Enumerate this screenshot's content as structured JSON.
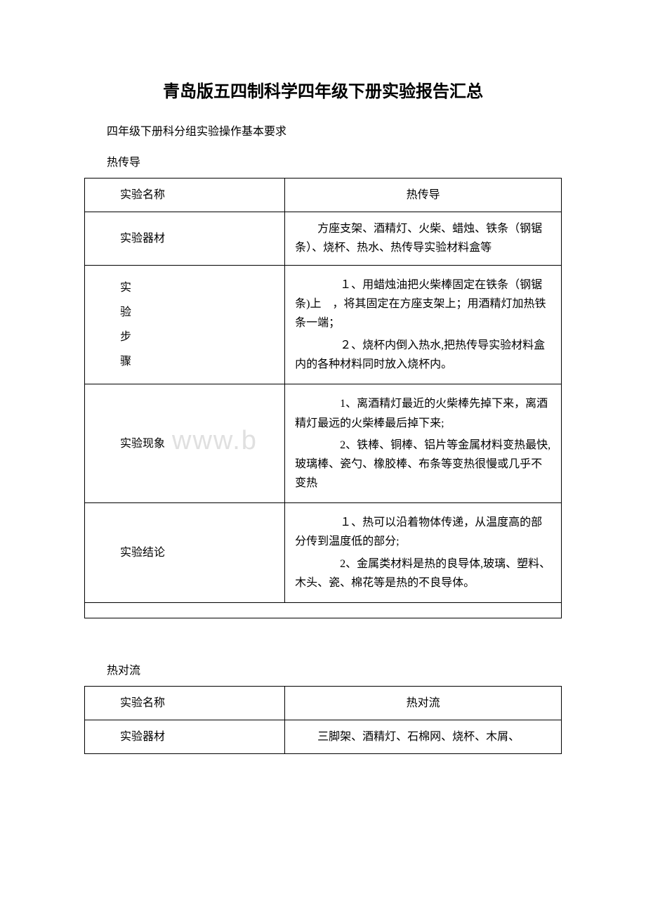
{
  "document": {
    "title": "青岛版五四制科学四年级下册实验报告汇总",
    "subtitle": "四年级下册科分组实验操作基本要求",
    "watermark": "www.b",
    "background_color": "#ffffff",
    "text_color": "#000000",
    "border_color": "#000000",
    "watermark_color": "#e0e0e0",
    "title_fontsize": 24,
    "body_fontsize": 16
  },
  "table1": {
    "section_label": "热传导",
    "column_widths": [
      0.42,
      0.58
    ],
    "rows": [
      {
        "left": "实验名称",
        "right": "热传导",
        "right_align": "center"
      },
      {
        "left": "实验器材",
        "right": "　　方座支架、酒精灯、火柴、蜡烛、铁条（钢锯条）、烧杯、热水、热传导实验材料盒等"
      },
      {
        "left_vertical": [
          "实",
          "验",
          "步",
          "骤"
        ],
        "right_multi": [
          "　　１、用蜡烛油把火柴棒固定在铁条（钢锯条)上　，将其固定在方座支架上；用酒精灯加热铁条一端；",
          "　　２、烧杯内倒入热水,把热传导实验材料盒内的各种材料同时放入烧杯内。"
        ]
      },
      {
        "left": "实验现象",
        "right_multi": [
          "　　1、离酒精灯最近的火柴棒先掉下来，离酒精灯最远的火柴棒最后掉下来;",
          "　　2、铁棒、铜棒、铝片等金属材料变热最快,玻璃棒、瓷勺、橡胶棒、布条等变热很慢或几乎不变热"
        ]
      },
      {
        "left": "实验结论",
        "right_multi": [
          "　　１、热可以沿着物体传递，从温度高的部分传到温度低的部分;",
          "　　2、金属类材料是热的良导体,玻璃、塑料、木头、瓷、棉花等是热的不良导体。"
        ]
      }
    ]
  },
  "table2": {
    "section_label": "热对流",
    "column_widths": [
      0.42,
      0.58
    ],
    "rows": [
      {
        "left": "实验名称",
        "right": "热对流",
        "right_align": "center"
      },
      {
        "left": "实验器材",
        "right": "　　三脚架、酒精灯、石棉网、烧杯、木屑、"
      }
    ]
  }
}
